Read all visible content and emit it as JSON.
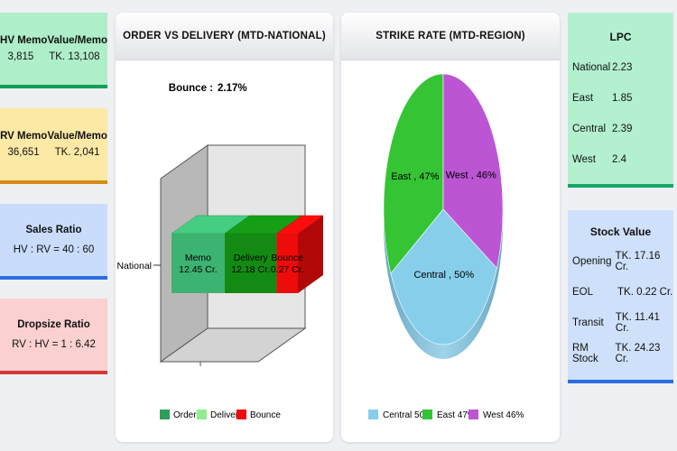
{
  "kpis": {
    "hv_memo": {
      "label": "HV Memo",
      "value": "3,815",
      "value_label": "Value/Memo",
      "value_value": "TK. 13,108",
      "bg": "#aeeec9",
      "border": "#0f9d58"
    },
    "rv_memo": {
      "label": "RV Memo",
      "value": "36,651",
      "value_label": "Value/Memo",
      "value_value": "TK. 2,041",
      "bg": "#fde9a6",
      "border": "#d98b14"
    },
    "sales_ratio": {
      "label": "Sales Ratio",
      "value": "HV : RV = 40 : 60",
      "bg": "#c9dcfb",
      "border": "#2a6ee0"
    },
    "dropsize_ratio": {
      "label": "Dropsize Ratio",
      "value": "RV : HV = 1 : 6.42",
      "bg": "#fbd0d0",
      "border": "#d23a3a"
    }
  },
  "order_chart": {
    "title": "ORDER VS DELIVERY (MTD-NATIONAL)",
    "bounce_label": "Bounce :",
    "bounce_value": "2.17%",
    "category": "National",
    "legend": [
      "Order",
      "Delivery",
      "Bounce"
    ]
  },
  "strike_chart": {
    "title": "STRIKE RATE (MTD-REGION)",
    "legend_values": [
      "50%",
      "47%",
      "46%"
    ]
  },
  "chart_data": [
    {
      "type": "bar",
      "title": "ORDER VS DELIVERY (MTD-NATIONAL)",
      "categories": [
        "National"
      ],
      "series": [
        {
          "name": "Order",
          "values": [
            12.45
          ],
          "color": "#3cb371",
          "label": "Memo"
        },
        {
          "name": "Delivery",
          "values": [
            12.18
          ],
          "color": "#138a13",
          "label": "Delivery"
        },
        {
          "name": "Bounce",
          "values": [
            0.27
          ],
          "color": "#ee0b0b",
          "label": "Bounce"
        }
      ],
      "unit": "Cr.",
      "legend_colors": [
        "#2e9e5b",
        "#90ee90",
        "#ee0b0b"
      ]
    },
    {
      "type": "pie",
      "title": "STRIKE RATE (MTD-REGION)",
      "slices": [
        {
          "name": "Central",
          "value": 50,
          "color": "#87ceeb"
        },
        {
          "name": "East",
          "value": 47,
          "color": "#34c434"
        },
        {
          "name": "West",
          "value": 46,
          "color": "#bb55d4"
        }
      ]
    }
  ],
  "lpc": {
    "title": "LPC",
    "rows": [
      {
        "label": "National",
        "value": "2.23"
      },
      {
        "label": "East",
        "value": "1.85"
      },
      {
        "label": "Central",
        "value": "2.39"
      },
      {
        "label": "West",
        "value": "2.4"
      }
    ]
  },
  "stock_value": {
    "title": "Stock Value",
    "rows": [
      {
        "label": "Opening",
        "value": "TK. 17.16 Cr."
      },
      {
        "label": "EOL",
        "value": "TK. 0.22 Cr."
      },
      {
        "label": "Transit",
        "value": "TK. 11.41 Cr."
      },
      {
        "label": "RM Stock",
        "value": "TK. 24.23 Cr."
      }
    ]
  },
  "colors": {
    "lpc_bg": "#b3f0cf",
    "lpc_border": "#14a667",
    "stock_bg": "#cfe0fa",
    "stock_border": "#2b6de0"
  }
}
